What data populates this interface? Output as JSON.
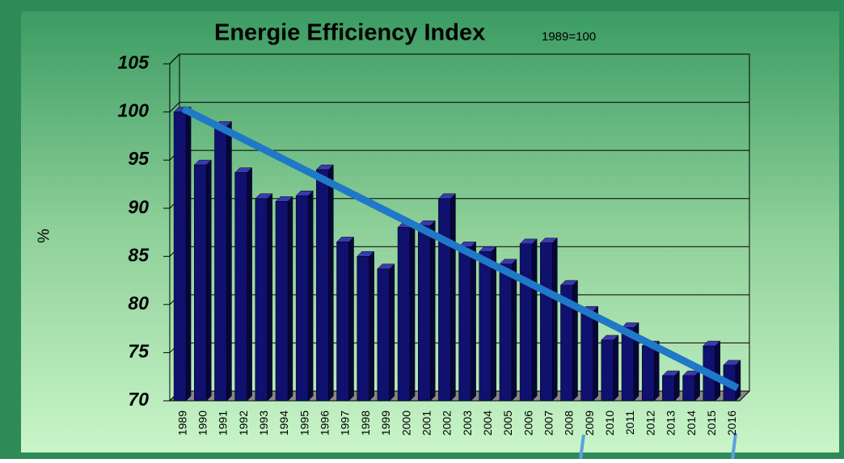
{
  "chart_data": {
    "type": "bar3d",
    "title": "Energie Efficiency Index",
    "subtitle": "1989=100",
    "y_label": "%",
    "categories": [
      "1989",
      "1990",
      "1991",
      "1992",
      "1993",
      "1994",
      "1995",
      "1996",
      "1997",
      "1998",
      "1999",
      "2000",
      "2001",
      "2002",
      "2003",
      "2004",
      "2005",
      "2006",
      "2007",
      "2008",
      "2009",
      "2010",
      "2011",
      "2012",
      "2013",
      "2014",
      "2015",
      "2016"
    ],
    "values": [
      100,
      94.5,
      98.5,
      93.7,
      91,
      90.7,
      91.3,
      94,
      86.5,
      85,
      83.7,
      88,
      88.2,
      91,
      86,
      85.5,
      84.2,
      86.3,
      86.4,
      82,
      79.3,
      76.3,
      77.6,
      75.7,
      72.6,
      72.6,
      75.7,
      73.7
    ],
    "color": "#10106e",
    "ylim": [
      70,
      105
    ],
    "yticks": [
      70,
      75,
      80,
      85,
      90,
      95,
      100,
      105
    ],
    "grid": true,
    "trendline": {
      "start": 100,
      "end": 71,
      "color": "#1f78c8"
    }
  }
}
